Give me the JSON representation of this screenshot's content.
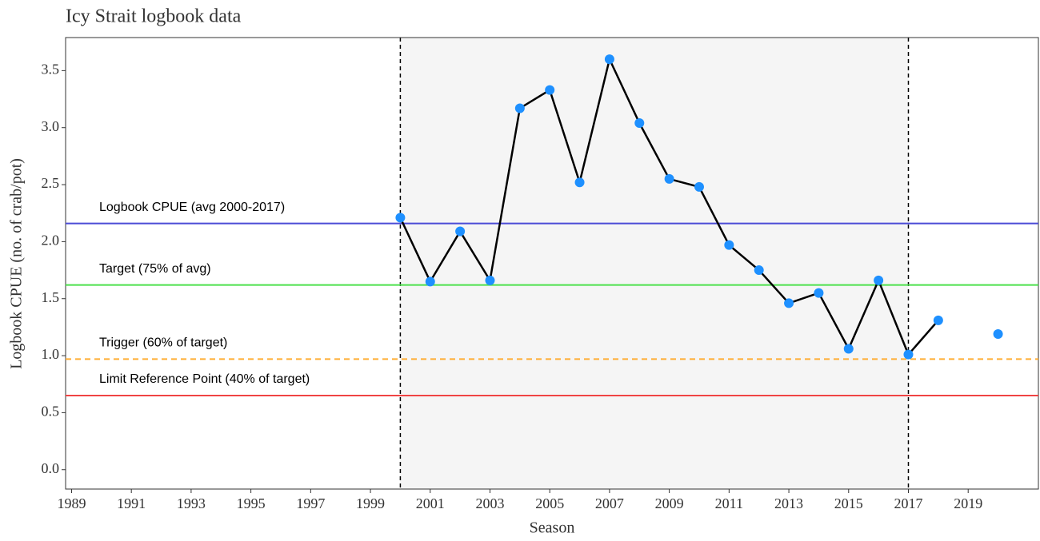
{
  "chart_data": {
    "type": "line",
    "title": "Icy Strait logbook data",
    "x_label": "Season",
    "y_label": "Logbook CPUE (no. of crab/pot)",
    "x": [
      2000,
      2001,
      2002,
      2003,
      2004,
      2005,
      2006,
      2007,
      2008,
      2009,
      2010,
      2011,
      2012,
      2013,
      2014,
      2015,
      2016,
      2017,
      2018,
      2019,
      2020
    ],
    "series": [
      {
        "color": "#000000",
        "point_color": "#1e90ff",
        "values": [
          2.21,
          1.65,
          2.09,
          1.66,
          3.17,
          3.33,
          2.52,
          3.6,
          3.04,
          2.55,
          2.48,
          1.97,
          1.75,
          1.46,
          1.55,
          1.06,
          1.66,
          1.01,
          1.31,
          null,
          1.19
        ]
      }
    ],
    "xlim": [
      1988.8,
      2021.35
    ],
    "xticks": [
      1989,
      1991,
      1993,
      1995,
      1997,
      1999,
      2001,
      2003,
      2005,
      2007,
      2009,
      2011,
      2013,
      2015,
      2017,
      2019
    ],
    "ylim": [
      -0.17,
      3.79
    ],
    "yticks": [
      {
        "value": 0,
        "label": "0.0"
      },
      0.5,
      {
        "value": 1,
        "label": "1.0"
      },
      1.5,
      {
        "value": 2,
        "label": "2.0"
      },
      2.5,
      {
        "value": 3,
        "label": "3.0"
      },
      3.5
    ],
    "highlight_period": [
      2000,
      2017
    ],
    "reference_lines": [
      {
        "label": "Logbook CPUE (avg 2000-2017)",
        "value": 2.16,
        "color": "#4b4bd6",
        "dashed": false
      },
      {
        "label": "Target (75% of avg)",
        "value": 1.62,
        "color": "#4ce04c",
        "dashed": false
      },
      {
        "label": "Trigger (60% of target)",
        "value": 0.97,
        "color": "#ffad33",
        "dashed": true
      },
      {
        "label": "Limit Reference Point (40% of target)",
        "value": 0.65,
        "color": "#f04444",
        "dashed": false
      }
    ]
  }
}
